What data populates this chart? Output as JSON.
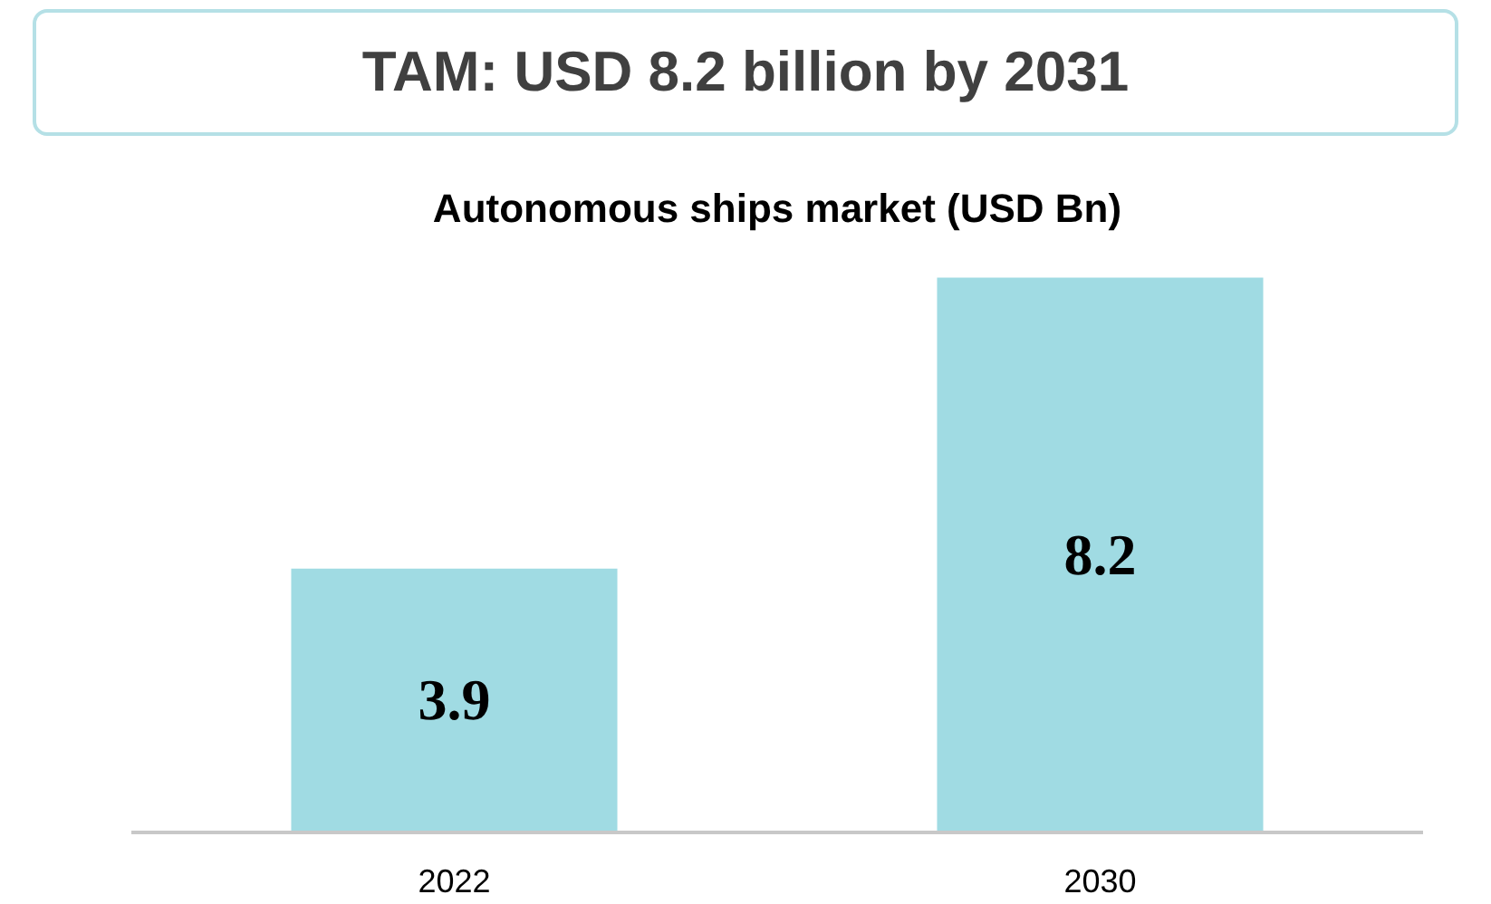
{
  "chart_data": {
    "type": "bar",
    "title": "TAM: USD 8.2 billion by 2031",
    "subtitle": "Autonomous ships market (USD Bn)",
    "categories": [
      "2022",
      "2030"
    ],
    "values": [
      3.9,
      8.2
    ],
    "color": "#a0dbe3",
    "data_labels": true
  }
}
